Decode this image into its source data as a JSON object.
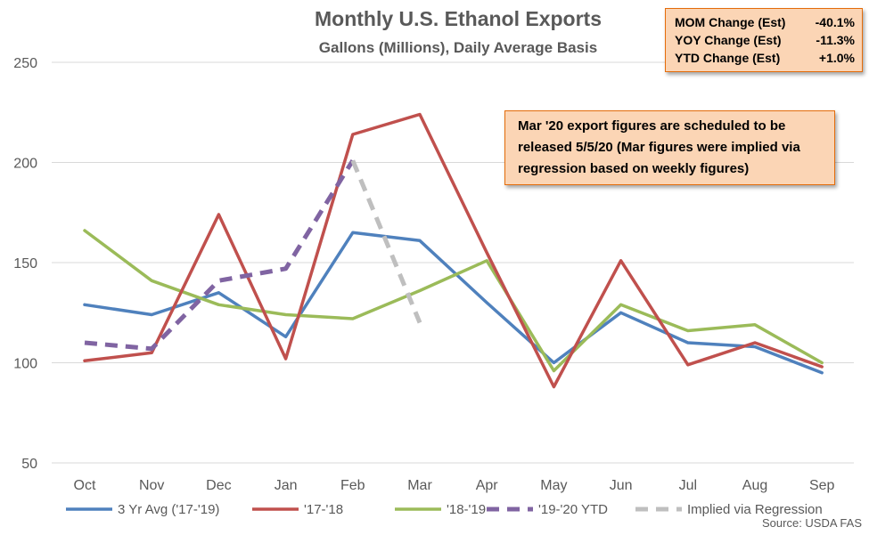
{
  "chart_data": {
    "type": "line",
    "title": "Monthly U.S. Ethanol Exports",
    "subtitle": "Gallons (Millions), Daily Average Basis",
    "categories": [
      "Oct",
      "Nov",
      "Dec",
      "Jan",
      "Feb",
      "Mar",
      "Apr",
      "May",
      "Jun",
      "Jul",
      "Aug",
      "Sep"
    ],
    "ylim": [
      50,
      250
    ],
    "yticks": [
      50,
      100,
      150,
      200,
      250
    ],
    "grid": true,
    "legend_position": "bottom",
    "series": [
      {
        "name": "3 Yr Avg ('17-'19)",
        "color": "#4f81bd",
        "style": "solid",
        "values": [
          129,
          124,
          135,
          113,
          165,
          161,
          130,
          100,
          125,
          110,
          108,
          95
        ]
      },
      {
        "name": "'17-'18",
        "color": "#c0504d",
        "style": "solid",
        "values": [
          101,
          105,
          174,
          102,
          214,
          224,
          155,
          88,
          151,
          99,
          110,
          98
        ]
      },
      {
        "name": "'18-'19",
        "color": "#9bbb59",
        "style": "solid",
        "values": [
          166,
          141,
          129,
          124,
          122,
          136,
          151,
          96,
          129,
          116,
          119,
          100
        ]
      },
      {
        "name": "'19-'20 YTD",
        "color": "#8064a2",
        "style": "dashed",
        "values": [
          110,
          107,
          141,
          147,
          201,
          null,
          null,
          null,
          null,
          null,
          null,
          null
        ]
      },
      {
        "name": "Implied via Regression",
        "color": "#bfbfbf",
        "style": "dashed",
        "values": [
          null,
          null,
          null,
          null,
          201,
          120,
          null,
          null,
          null,
          null,
          null,
          null
        ]
      }
    ]
  },
  "stats_box": [
    {
      "label": "MOM Change (Est)",
      "value": "-40.1%"
    },
    {
      "label": "YOY Change (Est)",
      "value": "-11.3%"
    },
    {
      "label": "YTD Change (Est)",
      "value": "+1.0%"
    }
  ],
  "note": "Mar '20 export figures are scheduled to be released 5/5/20 (Mar figures were implied via regression based on weekly figures)",
  "source": "Source: USDA FAS"
}
